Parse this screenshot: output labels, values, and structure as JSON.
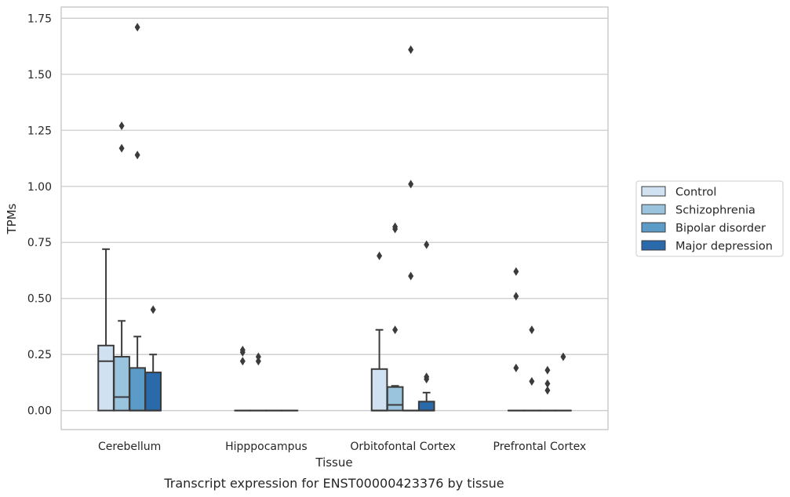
{
  "chart_data": {
    "type": "box",
    "xlabel": "Tissue",
    "ylabel": "TPMs",
    "caption": "Transcript expression for ENST00000423376 by tissue",
    "ylim": [
      -0.085,
      1.8
    ],
    "yticks": [
      "0.00",
      "0.25",
      "0.50",
      "0.75",
      "1.00",
      "1.25",
      "1.50",
      "1.75"
    ],
    "ytick_values": [
      0,
      0.25,
      0.5,
      0.75,
      1.0,
      1.25,
      1.5,
      1.75
    ],
    "grid": "horizontal",
    "legend_position": "right",
    "categories": [
      "Cerebellum",
      "Hipppocampus",
      "Orbitofontal Cortex",
      "Prefrontal Cortex"
    ],
    "series": [
      {
        "name": "Control",
        "color": "#d0e1f2",
        "boxes": [
          {
            "q1": 0,
            "median": 0.22,
            "q3": 0.29,
            "whisker_low": 0,
            "whisker_high": 0.72,
            "outliers": []
          },
          {
            "q1": 0,
            "median": 0,
            "q3": 0,
            "whisker_low": 0,
            "whisker_high": 0,
            "outliers": [
              0.22,
              0.26,
              0.27
            ]
          },
          {
            "q1": 0,
            "median": 0,
            "q3": 0.185,
            "whisker_low": 0,
            "whisker_high": 0.36,
            "outliers": [
              0.69
            ]
          },
          {
            "q1": 0,
            "median": 0,
            "q3": 0,
            "whisker_low": 0,
            "whisker_high": 0,
            "outliers": [
              0.19,
              0.51,
              0.62
            ]
          }
        ]
      },
      {
        "name": "Schizophrenia",
        "color": "#9ac4dd",
        "boxes": [
          {
            "q1": 0,
            "median": 0.06,
            "q3": 0.24,
            "whisker_low": 0,
            "whisker_high": 0.4,
            "outliers": [
              1.17,
              1.27
            ]
          },
          {
            "q1": 0,
            "median": 0,
            "q3": 0,
            "whisker_low": 0,
            "whisker_high": 0,
            "outliers": [
              0.22,
              0.24
            ]
          },
          {
            "q1": 0,
            "median": 0.025,
            "q3": 0.105,
            "whisker_low": 0,
            "whisker_high": 0.11,
            "outliers": [
              0.36,
              0.81,
              0.82
            ]
          },
          {
            "q1": 0,
            "median": 0,
            "q3": 0,
            "whisker_low": 0,
            "whisker_high": 0,
            "outliers": [
              0.13,
              0.36
            ]
          }
        ]
      },
      {
        "name": "Bipolar disorder",
        "color": "#5b9bc8",
        "boxes": [
          {
            "q1": 0,
            "median": 0,
            "q3": 0.19,
            "whisker_low": 0,
            "whisker_high": 0.33,
            "outliers": [
              1.14,
              1.71
            ]
          },
          {
            "q1": 0,
            "median": 0,
            "q3": 0,
            "whisker_low": 0,
            "whisker_high": 0,
            "outliers": []
          },
          {
            "q1": 0,
            "median": 0,
            "q3": 0,
            "whisker_low": 0,
            "whisker_high": 0,
            "outliers": [
              0.6,
              1.01,
              1.61
            ]
          },
          {
            "q1": 0,
            "median": 0,
            "q3": 0,
            "whisker_low": 0,
            "whisker_high": 0,
            "outliers": [
              0.09,
              0.12,
              0.18
            ]
          }
        ]
      },
      {
        "name": "Major depression",
        "color": "#2a6aab",
        "boxes": [
          {
            "q1": 0,
            "median": 0,
            "q3": 0.17,
            "whisker_low": 0,
            "whisker_high": 0.25,
            "outliers": [
              0.45
            ]
          },
          {
            "q1": 0,
            "median": 0,
            "q3": 0,
            "whisker_low": 0,
            "whisker_high": 0,
            "outliers": []
          },
          {
            "q1": 0,
            "median": 0,
            "q3": 0.04,
            "whisker_low": 0,
            "whisker_high": 0.08,
            "outliers": [
              0.14,
              0.15,
              0.74
            ]
          },
          {
            "q1": 0,
            "median": 0,
            "q3": 0,
            "whisker_low": 0,
            "whisker_high": 0,
            "outliers": [
              0.24
            ]
          }
        ]
      }
    ]
  },
  "colors": {
    "grid": "#cccccc",
    "frame": "#cccccc",
    "box_edge": "#3b3b3b",
    "text": "#262626"
  }
}
